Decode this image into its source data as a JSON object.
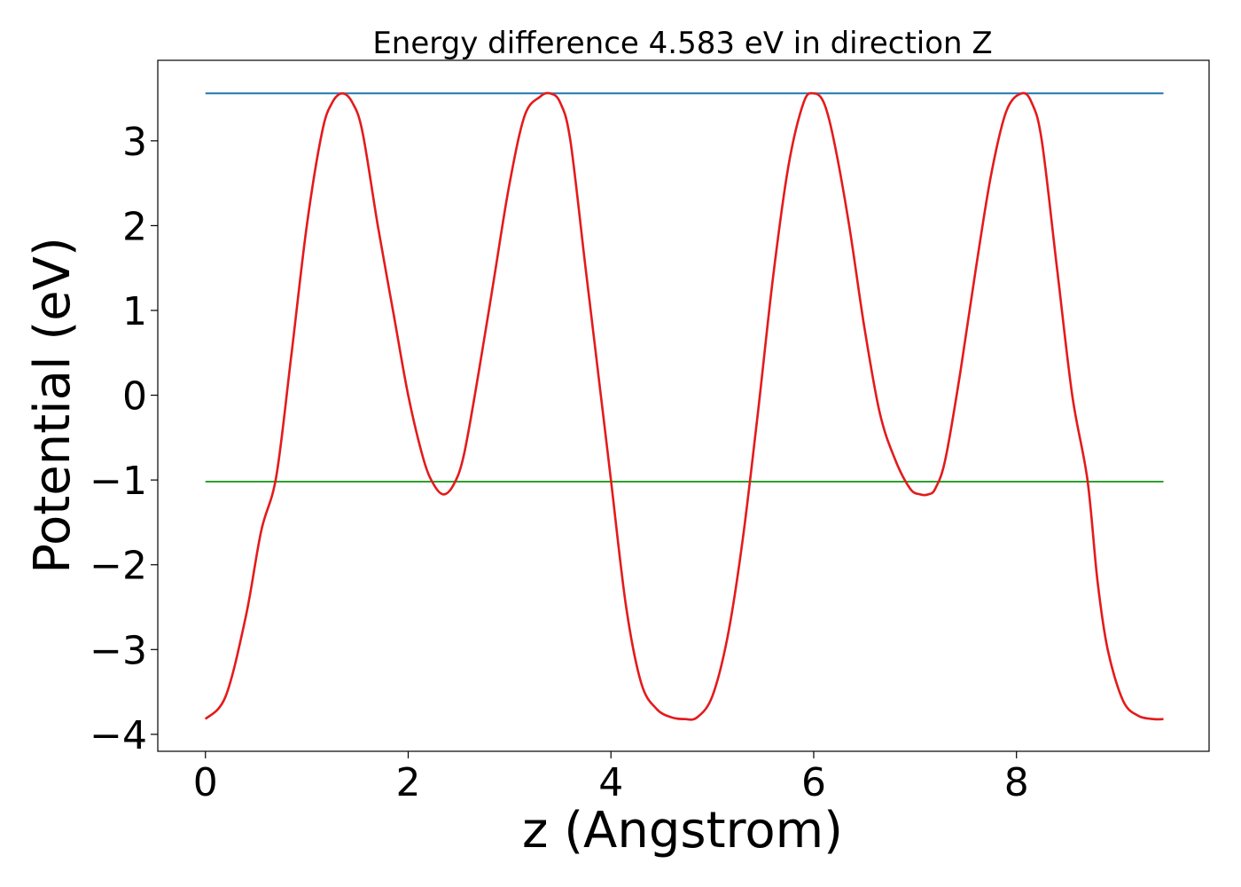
{
  "chart_data": {
    "type": "line",
    "title": "Energy difference 4.583 eV in direction Z",
    "xlabel": "z (Angstrom)",
    "ylabel": "Potential (eV)",
    "xlim": [
      -0.47,
      9.9
    ],
    "ylim": [
      -4.2,
      3.95
    ],
    "xticks": [
      0,
      2,
      4,
      6,
      8
    ],
    "xtick_labels": [
      "0",
      "2",
      "4",
      "6",
      "8"
    ],
    "yticks": [
      -4,
      -3,
      -2,
      -1,
      0,
      1,
      2,
      3
    ],
    "ytick_labels": [
      "−4",
      "−3",
      "−2",
      "−1",
      "0",
      "1",
      "2",
      "3"
    ],
    "grid": false,
    "legend": "none",
    "series": [
      {
        "color": "#1f77b4",
        "style": "hline",
        "x": [
          0,
          9.45
        ],
        "y": [
          3.56,
          3.56
        ]
      },
      {
        "color": "#2ca02c",
        "style": "hline",
        "x": [
          0,
          9.45
        ],
        "y": [
          -1.02,
          -1.02
        ]
      },
      {
        "color": "#e41a1c",
        "style": "curve",
        "x": [
          0,
          0.2,
          0.4,
          0.55,
          0.7,
          0.85,
          1.0,
          1.15,
          1.25,
          1.35,
          1.45,
          1.55,
          1.7,
          1.85,
          2.0,
          2.15,
          2.25,
          2.35,
          2.45,
          2.55,
          2.7,
          2.85,
          3.0,
          3.15,
          3.3,
          3.4,
          3.5,
          3.6,
          3.75,
          3.9,
          4.0,
          4.15,
          4.3,
          4.45,
          4.6,
          4.73,
          4.85,
          5.0,
          5.15,
          5.3,
          5.45,
          5.6,
          5.75,
          5.9,
          6.0,
          6.1,
          6.2,
          6.35,
          6.5,
          6.65,
          6.8,
          6.95,
          7.05,
          7.13,
          7.2,
          7.3,
          7.45,
          7.6,
          7.75,
          7.9,
          8.05,
          8.15,
          8.25,
          8.4,
          8.55,
          8.7,
          8.8,
          8.9,
          9.05,
          9.2,
          9.35,
          9.45
        ],
        "y": [
          -3.82,
          -3.55,
          -2.6,
          -1.6,
          -0.95,
          0.5,
          2.0,
          3.1,
          3.45,
          3.56,
          3.45,
          3.1,
          2.0,
          1.0,
          0.0,
          -0.75,
          -1.05,
          -1.17,
          -1.05,
          -0.7,
          0.3,
          1.4,
          2.5,
          3.3,
          3.52,
          3.56,
          3.45,
          3.0,
          1.5,
          0.0,
          -1.0,
          -2.5,
          -3.4,
          -3.7,
          -3.8,
          -3.82,
          -3.8,
          -3.55,
          -2.85,
          -1.7,
          -0.2,
          1.4,
          2.7,
          3.45,
          3.56,
          3.45,
          3.0,
          2.0,
          0.8,
          -0.2,
          -0.75,
          -1.1,
          -1.17,
          -1.17,
          -1.1,
          -0.75,
          0.3,
          1.5,
          2.6,
          3.35,
          3.56,
          3.45,
          3.0,
          1.5,
          0.0,
          -1.0,
          -2.2,
          -3.0,
          -3.6,
          -3.78,
          -3.82,
          -3.82
        ]
      }
    ]
  }
}
